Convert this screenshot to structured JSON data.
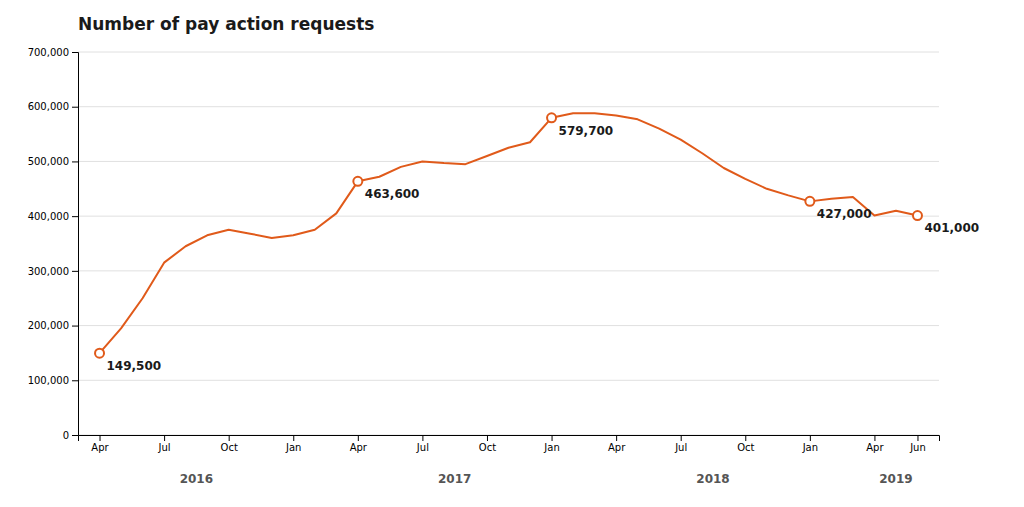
{
  "chart_data": {
    "type": "line",
    "title": "Number of pay action requests",
    "categories": [
      "Apr",
      null,
      null,
      "Jul",
      null,
      null,
      "Oct",
      null,
      null,
      "Jan",
      null,
      null,
      "Apr",
      null,
      null,
      "Jul",
      null,
      null,
      "Oct",
      null,
      null,
      "Jan",
      null,
      null,
      "Apr",
      null,
      null,
      "Jul",
      null,
      null,
      "Oct",
      null,
      null,
      "Jan",
      null,
      null,
      "Apr",
      null,
      "Jun"
    ],
    "values": [
      149500,
      195000,
      250000,
      315000,
      345000,
      365000,
      375000,
      368000,
      360000,
      365000,
      375000,
      405000,
      463600,
      472000,
      490000,
      500000,
      497000,
      495000,
      510000,
      525000,
      535000,
      579700,
      588000,
      588000,
      584000,
      577000,
      560000,
      540000,
      515000,
      488000,
      468000,
      450000,
      438000,
      427000,
      432000,
      435000,
      401000,
      410000,
      401000
    ],
    "value_labels": [
      "149,500",
      null,
      null,
      null,
      null,
      null,
      null,
      null,
      null,
      null,
      null,
      null,
      "463,600",
      null,
      null,
      null,
      null,
      null,
      null,
      null,
      null,
      "579,700",
      null,
      null,
      null,
      null,
      null,
      null,
      null,
      null,
      null,
      null,
      null,
      "427,000",
      null,
      null,
      null,
      null,
      "401,000"
    ],
    "data_labels": true,
    "color": "#E05A1A",
    "ylim": [
      0,
      700000
    ],
    "yticks": [
      0,
      {
        "value": 100000,
        "label": "100,000"
      },
      {
        "value": 200000,
        "label": "200,000"
      },
      {
        "value": 300000,
        "label": "300,000"
      },
      {
        "value": 400000,
        "label": "400,000"
      },
      {
        "value": 500000,
        "label": "500,000"
      },
      {
        "value": 600000,
        "label": "600,000"
      },
      {
        "value": 700000,
        "label": "700,000"
      }
    ],
    "grid": true,
    "annotations": [
      {
        "text": "2016",
        "x": 4.5
      },
      {
        "text": "2017",
        "x": 16.5
      },
      {
        "text": "2018",
        "x": 28.5
      },
      {
        "text": "2019",
        "x": 37.0
      }
    ]
  }
}
